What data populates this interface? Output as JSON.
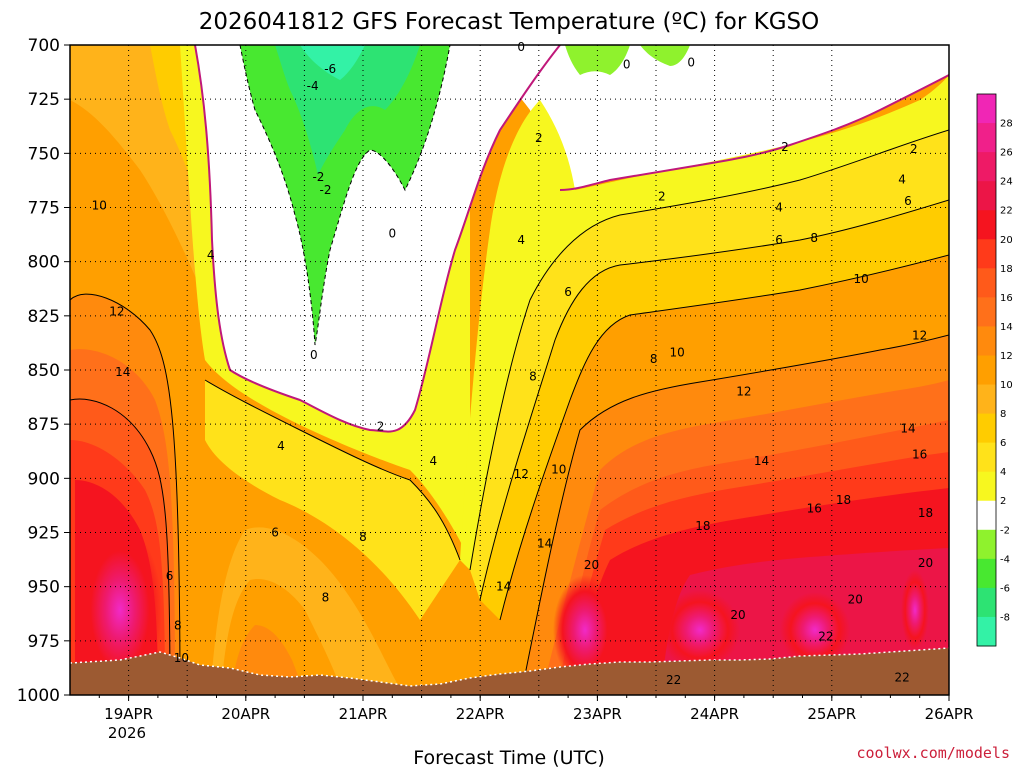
{
  "chart_data": {
    "type": "heatmap",
    "title": "2026041812 GFS Forecast Temperature (ºC) for KGSO",
    "xlabel": "Forecast Time (UTC)",
    "ylabel": "",
    "credit": "coolwx.com/models",
    "y_ticks": [
      "700",
      "725",
      "750",
      "775",
      "800",
      "825",
      "850",
      "875",
      "900",
      "925",
      "950",
      "975",
      "1000"
    ],
    "y_values": [
      700,
      725,
      750,
      775,
      800,
      825,
      850,
      875,
      900,
      925,
      950,
      975,
      1000
    ],
    "ylim": [
      700,
      1000
    ],
    "x_ticks": [
      "19APR",
      "20APR",
      "21APR",
      "22APR",
      "23APR",
      "24APR",
      "25APR",
      "26APR"
    ],
    "x_tick_year": "2026",
    "xlim_days": [
      18.5,
      26.0
    ],
    "grid": true,
    "colorbar": {
      "labels": [
        "28",
        "26",
        "24",
        "22",
        "20",
        "18",
        "16",
        "14",
        "12",
        "10",
        "8",
        "6",
        "4",
        "2",
        "-2",
        "-4",
        "-6",
        "-8"
      ],
      "levels": [
        -8,
        -6,
        -4,
        -2,
        2,
        4,
        6,
        8,
        10,
        12,
        14,
        16,
        18,
        20,
        22,
        24,
        26,
        28
      ]
    },
    "contour_labels": [
      {
        "text": "-6",
        "day": 20.72,
        "p": 711
      },
      {
        "text": "-4",
        "day": 20.57,
        "p": 719
      },
      {
        "text": "-2",
        "day": 20.62,
        "p": 761
      },
      {
        "text": "-2",
        "day": 20.68,
        "p": 767
      },
      {
        "text": "0",
        "day": 22.35,
        "p": 701
      },
      {
        "text": "0",
        "day": 23.25,
        "p": 709
      },
      {
        "text": "0",
        "day": 23.8,
        "p": 708
      },
      {
        "text": "0",
        "day": 21.25,
        "p": 787
      },
      {
        "text": "0",
        "day": 20.58,
        "p": 843
      },
      {
        "text": "2",
        "day": 22.5,
        "p": 743
      },
      {
        "text": "2",
        "day": 23.55,
        "p": 770
      },
      {
        "text": "2",
        "day": 24.6,
        "p": 747
      },
      {
        "text": "2",
        "day": 25.7,
        "p": 748
      },
      {
        "text": "2",
        "day": 21.15,
        "p": 876
      },
      {
        "text": "4",
        "day": 19.7,
        "p": 797
      },
      {
        "text": "4",
        "day": 22.35,
        "p": 790
      },
      {
        "text": "4",
        "day": 24.55,
        "p": 775
      },
      {
        "text": "4",
        "day": 25.6,
        "p": 762
      },
      {
        "text": "4",
        "day": 20.3,
        "p": 885
      },
      {
        "text": "4",
        "day": 21.6,
        "p": 892
      },
      {
        "text": "6",
        "day": 22.75,
        "p": 814
      },
      {
        "text": "6",
        "day": 24.55,
        "p": 790
      },
      {
        "text": "6",
        "day": 25.65,
        "p": 772
      },
      {
        "text": "6",
        "day": 20.25,
        "p": 925
      },
      {
        "text": "6",
        "day": 19.35,
        "p": 945
      },
      {
        "text": "8",
        "day": 22.45,
        "p": 853
      },
      {
        "text": "8",
        "day": 23.48,
        "p": 845
      },
      {
        "text": "8",
        "day": 24.85,
        "p": 789
      },
      {
        "text": "8",
        "day": 21.0,
        "p": 927
      },
      {
        "text": "8",
        "day": 20.68,
        "p": 955
      },
      {
        "text": "8",
        "day": 19.42,
        "p": 968
      },
      {
        "text": "10",
        "day": 18.75,
        "p": 774
      },
      {
        "text": "10",
        "day": 23.68,
        "p": 842
      },
      {
        "text": "10",
        "day": 25.25,
        "p": 808
      },
      {
        "text": "10",
        "day": 22.67,
        "p": 896
      },
      {
        "text": "10",
        "day": 19.45,
        "p": 983
      },
      {
        "text": "12",
        "day": 18.9,
        "p": 823
      },
      {
        "text": "12",
        "day": 24.25,
        "p": 860
      },
      {
        "text": "12",
        "day": 25.75,
        "p": 834
      },
      {
        "text": "12",
        "day": 22.35,
        "p": 898
      },
      {
        "text": "14",
        "day": 18.95,
        "p": 851
      },
      {
        "text": "14",
        "day": 24.4,
        "p": 892
      },
      {
        "text": "14",
        "day": 25.65,
        "p": 877
      },
      {
        "text": "14",
        "day": 22.55,
        "p": 930
      },
      {
        "text": "14",
        "day": 22.2,
        "p": 950
      },
      {
        "text": "16",
        "day": 24.85,
        "p": 914
      },
      {
        "text": "16",
        "day": 25.75,
        "p": 889
      },
      {
        "text": "18",
        "day": 23.9,
        "p": 922
      },
      {
        "text": "18",
        "day": 25.1,
        "p": 910
      },
      {
        "text": "18",
        "day": 25.8,
        "p": 916
      },
      {
        "text": "20",
        "day": 22.95,
        "p": 940
      },
      {
        "text": "20",
        "day": 24.2,
        "p": 963
      },
      {
        "text": "20",
        "day": 25.2,
        "p": 956
      },
      {
        "text": "20",
        "day": 25.8,
        "p": 939
      },
      {
        "text": "22",
        "day": 24.95,
        "p": 973
      },
      {
        "text": "22",
        "day": 23.65,
        "p": 993
      },
      {
        "text": "22",
        "day": 25.6,
        "p": 992
      }
    ]
  },
  "colors": {
    "band_minus8": "#33f2a6",
    "band_minus6": "#2de373",
    "band_minus4": "#48e830",
    "band_minus2": "#8ff22d",
    "band_zero": "#ffffff",
    "band_2": "#f7f71f",
    "band_4": "#ffe21a",
    "band_6": "#ffcc00",
    "band_8": "#ffb31a",
    "band_10": "#ff9f00",
    "band_12": "#ff8a0d",
    "band_14": "#ff701a",
    "band_16": "#ff5a1a",
    "band_18": "#ff3a1a",
    "band_20": "#f5141f",
    "band_22": "#ec1547",
    "band_24": "#ee1a66",
    "band_26": "#f0208a",
    "band_28": "#f026b5",
    "freezing_line": "#c0187a",
    "ground": "#9c5a32"
  }
}
